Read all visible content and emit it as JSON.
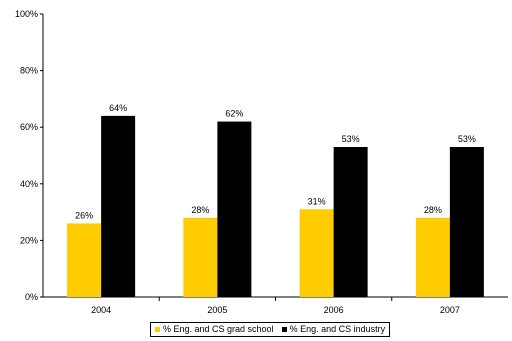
{
  "chart_data": {
    "type": "bar",
    "categories": [
      "2004",
      "2005",
      "2006",
      "2007"
    ],
    "series": [
      {
        "name": "% Eng. and CS grad school",
        "values": [
          26,
          28,
          31,
          28
        ],
        "labels": [
          "26%",
          "28%",
          "31%",
          "28%"
        ],
        "color": "#FFCC00"
      },
      {
        "name": "% Eng. and CS industry",
        "values": [
          64,
          62,
          53,
          53
        ],
        "labels": [
          "64%",
          "62%",
          "53%",
          "53%"
        ],
        "color": "#000000"
      }
    ],
    "yticks": [
      0,
      20,
      40,
      60,
      80,
      100
    ],
    "ytick_labels": [
      "0%",
      "20%",
      "40%",
      "60%",
      "80%",
      "100%"
    ],
    "ylim": [
      0,
      100
    ],
    "grid": false,
    "legend": "bottom"
  }
}
